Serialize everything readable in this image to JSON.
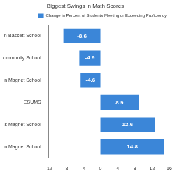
{
  "chart_data": {
    "type": "bar",
    "orientation": "horizontal",
    "title": "Biggest Swings in Math Scores",
    "categories": [
      "n-Bassett School",
      "ommunity School",
      "n Magnet School",
      "ESUMS",
      "s Magnet School",
      "n Magnet School"
    ],
    "series": [
      {
        "name": "Change in Percent of Students Meeting or Exceeding Proficiency",
        "color": "#3b86d8",
        "values": [
          -8.6,
          -4.9,
          -4.6,
          8.9,
          12.6,
          14.8
        ]
      }
    ],
    "xlim": [
      -12,
      16
    ],
    "xticks": [
      -12,
      -8,
      -4,
      0,
      4,
      8,
      12,
      16
    ],
    "grid": false,
    "legend": "top",
    "data_labels": true
  }
}
